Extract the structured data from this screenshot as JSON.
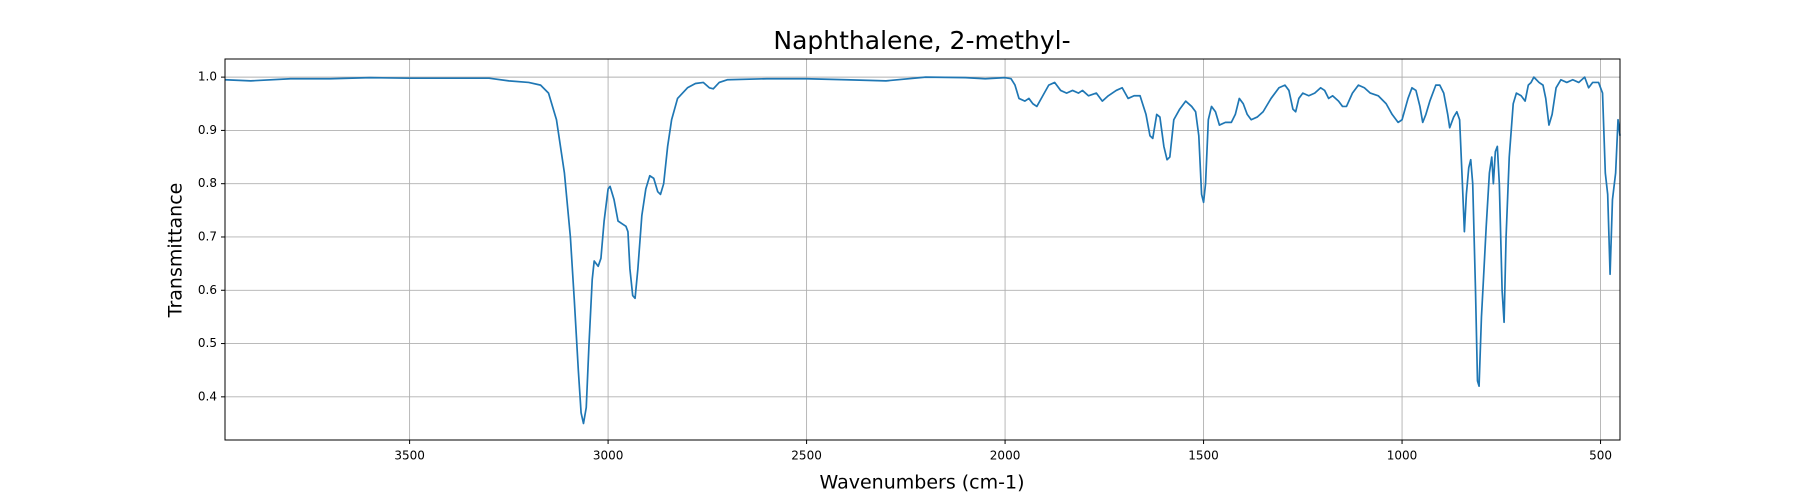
{
  "chart_data": {
    "type": "line",
    "title": "Naphthalene, 2-methyl-",
    "x_label": "Wavenumbers (cm-1)",
    "y_label": "Transmittance",
    "color": "#1f77b4",
    "grid": true,
    "xlim": [
      3965,
      451
    ],
    "ylim": [
      0.319,
      1.034
    ],
    "xticks": [
      3500,
      3000,
      2500,
      2000,
      1500,
      1000,
      500
    ],
    "yticks": [
      0.4,
      0.5,
      0.6,
      0.7,
      0.8,
      0.9,
      {
        "value": 1.0,
        "label": "1.0"
      }
    ],
    "x": [
      3965,
      3900,
      3800,
      3700,
      3600,
      3500,
      3400,
      3300,
      3250,
      3200,
      3170,
      3150,
      3130,
      3110,
      3095,
      3085,
      3075,
      3068,
      3062,
      3055,
      3048,
      3040,
      3035,
      3025,
      3018,
      3010,
      3000,
      2995,
      2985,
      2975,
      2965,
      2955,
      2950,
      2945,
      2938,
      2932,
      2925,
      2915,
      2905,
      2895,
      2885,
      2875,
      2868,
      2860,
      2850,
      2840,
      2825,
      2800,
      2780,
      2760,
      2745,
      2735,
      2720,
      2700,
      2600,
      2500,
      2400,
      2300,
      2200,
      2100,
      2050,
      2000,
      1985,
      1975,
      1965,
      1950,
      1940,
      1930,
      1920,
      1905,
      1890,
      1875,
      1860,
      1845,
      1830,
      1815,
      1805,
      1790,
      1770,
      1755,
      1740,
      1720,
      1705,
      1690,
      1675,
      1660,
      1645,
      1635,
      1628,
      1618,
      1610,
      1600,
      1592,
      1585,
      1575,
      1560,
      1545,
      1530,
      1520,
      1512,
      1505,
      1500,
      1495,
      1488,
      1480,
      1470,
      1460,
      1445,
      1430,
      1420,
      1410,
      1400,
      1390,
      1380,
      1365,
      1350,
      1330,
      1310,
      1295,
      1285,
      1275,
      1268,
      1260,
      1250,
      1235,
      1220,
      1205,
      1195,
      1185,
      1175,
      1160,
      1150,
      1140,
      1125,
      1110,
      1095,
      1080,
      1060,
      1040,
      1025,
      1010,
      1000,
      985,
      975,
      965,
      955,
      948,
      940,
      930,
      915,
      905,
      895,
      885,
      880,
      870,
      862,
      855,
      848,
      843,
      838,
      832,
      827,
      822,
      815,
      810,
      806,
      800,
      795,
      788,
      780,
      774,
      770,
      765,
      760,
      755,
      748,
      743,
      738,
      730,
      720,
      712,
      700,
      690,
      682,
      675,
      668,
      655,
      645,
      638,
      630,
      622,
      612,
      600,
      585,
      570,
      555,
      540,
      530,
      520,
      505,
      495,
      488,
      482,
      476,
      470,
      462,
      456,
      451
    ],
    "values": [
      0.995,
      0.993,
      0.997,
      0.997,
      0.999,
      0.998,
      0.998,
      0.998,
      0.993,
      0.99,
      0.985,
      0.97,
      0.92,
      0.82,
      0.7,
      0.58,
      0.45,
      0.37,
      0.35,
      0.38,
      0.5,
      0.62,
      0.655,
      0.645,
      0.66,
      0.73,
      0.79,
      0.795,
      0.77,
      0.73,
      0.725,
      0.72,
      0.71,
      0.64,
      0.59,
      0.585,
      0.64,
      0.74,
      0.79,
      0.815,
      0.81,
      0.785,
      0.78,
      0.8,
      0.87,
      0.92,
      0.96,
      0.98,
      0.988,
      0.99,
      0.98,
      0.978,
      0.99,
      0.995,
      0.997,
      0.997,
      0.995,
      0.993,
      1.0,
      0.999,
      0.997,
      0.999,
      0.997,
      0.985,
      0.96,
      0.955,
      0.96,
      0.95,
      0.945,
      0.965,
      0.985,
      0.99,
      0.975,
      0.97,
      0.975,
      0.97,
      0.975,
      0.965,
      0.97,
      0.955,
      0.965,
      0.975,
      0.98,
      0.96,
      0.965,
      0.965,
      0.93,
      0.89,
      0.885,
      0.93,
      0.925,
      0.87,
      0.845,
      0.85,
      0.92,
      0.94,
      0.955,
      0.945,
      0.935,
      0.89,
      0.78,
      0.765,
      0.8,
      0.92,
      0.945,
      0.935,
      0.91,
      0.915,
      0.915,
      0.93,
      0.96,
      0.95,
      0.93,
      0.92,
      0.925,
      0.935,
      0.96,
      0.98,
      0.985,
      0.975,
      0.94,
      0.935,
      0.96,
      0.97,
      0.965,
      0.97,
      0.98,
      0.975,
      0.96,
      0.965,
      0.955,
      0.945,
      0.945,
      0.97,
      0.985,
      0.98,
      0.97,
      0.965,
      0.95,
      0.93,
      0.915,
      0.92,
      0.96,
      0.98,
      0.975,
      0.945,
      0.915,
      0.93,
      0.955,
      0.985,
      0.985,
      0.97,
      0.93,
      0.905,
      0.925,
      0.935,
      0.92,
      0.8,
      0.71,
      0.78,
      0.83,
      0.845,
      0.8,
      0.6,
      0.43,
      0.42,
      0.55,
      0.62,
      0.72,
      0.82,
      0.85,
      0.8,
      0.86,
      0.87,
      0.8,
      0.6,
      0.54,
      0.7,
      0.85,
      0.95,
      0.97,
      0.965,
      0.955,
      0.985,
      0.99,
      1.0,
      0.99,
      0.985,
      0.96,
      0.91,
      0.93,
      0.98,
      0.995,
      0.99,
      0.995,
      0.99,
      1.0,
      0.98,
      0.99,
      0.99,
      0.97,
      0.82,
      0.78,
      0.63,
      0.77,
      0.82,
      0.92,
      0.89
    ]
  }
}
